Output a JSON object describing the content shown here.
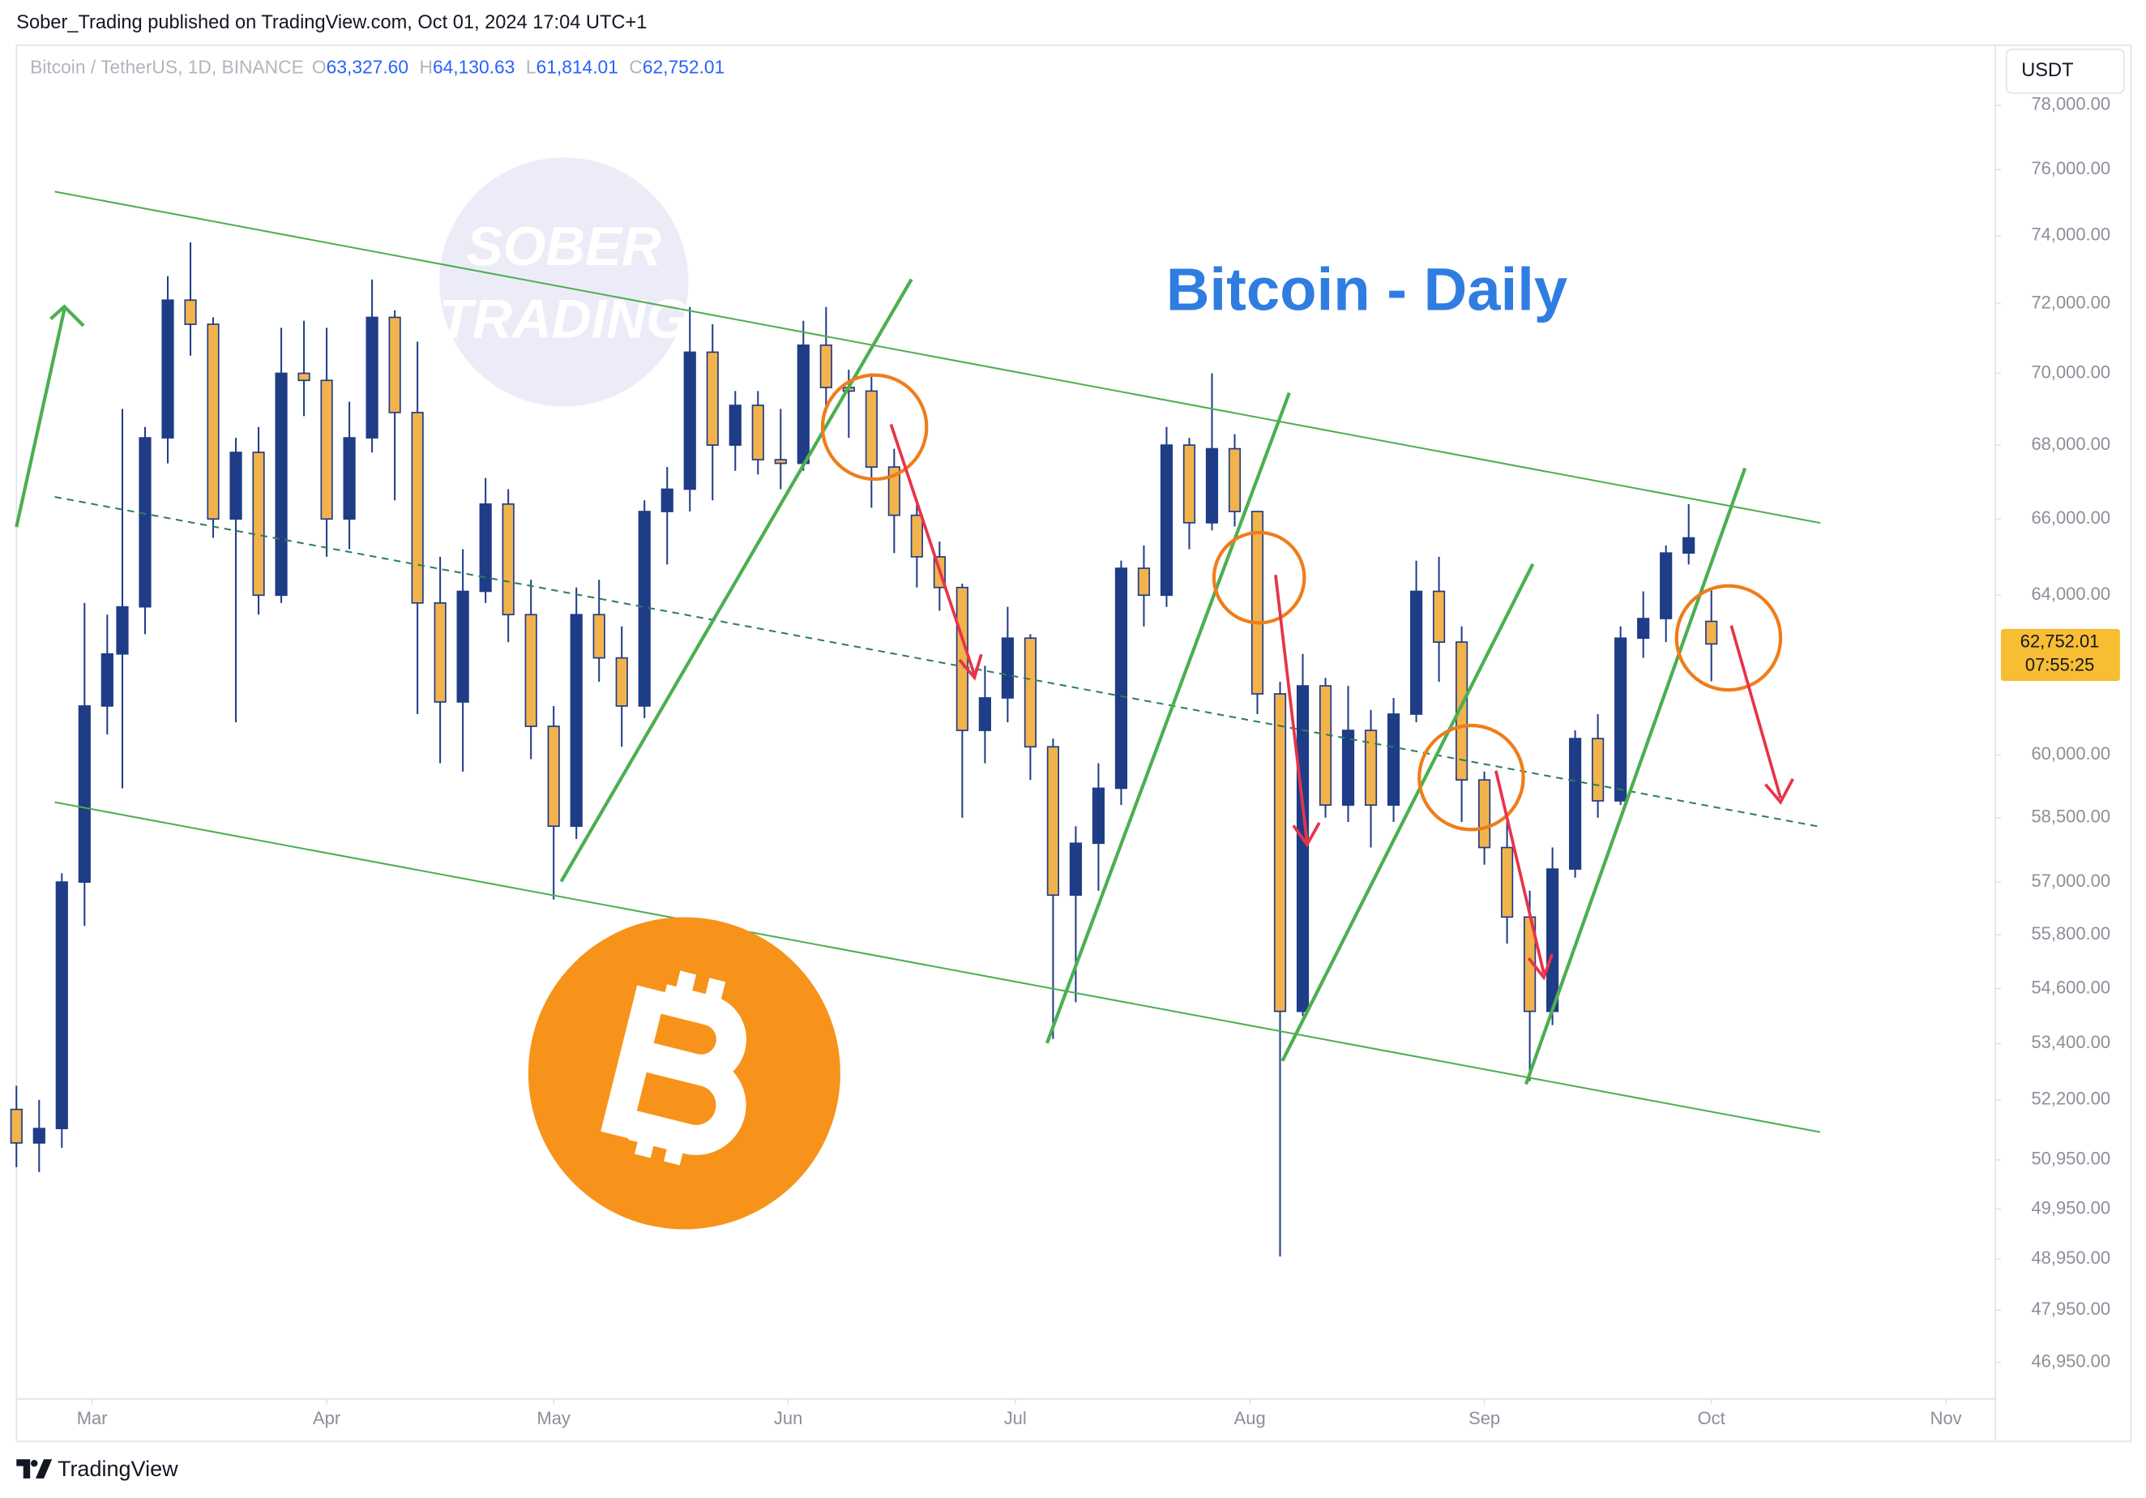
{
  "chart_data": {
    "type": "candlestick",
    "publisher": "Sober_Trading published on TradingView.com, Oct 01, 2024 17:04 UTC+1",
    "symbol": "Bitcoin / TetherUS, 1D, BINANCE",
    "ohlc_legend": [
      [
        "O",
        "63,327.60"
      ],
      [
        "H",
        "64,130.63"
      ],
      [
        "L",
        "61,814.01"
      ],
      [
        "C",
        "62,752.01"
      ]
    ],
    "title": "Bitcoin - Daily",
    "currency": "USDT",
    "watermark": [
      "SOBER",
      "TRADING"
    ],
    "footer": "TradingView",
    "log_scale": true,
    "up_color": "#1f3d87",
    "down_color": "#f2b34c",
    "last_price_label": "62,752.01",
    "countdown": "07:55:25",
    "last_price_color": "#f7bd33",
    "xlim": [
      "2024-02-20",
      "2024-11-07"
    ],
    "xticks": [
      {
        "value": "2024-03-01",
        "label": "Mar"
      },
      {
        "value": "2024-04-01",
        "label": "Apr"
      },
      {
        "value": "2024-05-01",
        "label": "May"
      },
      {
        "value": "2024-06-01",
        "label": "Jun"
      },
      {
        "value": "2024-07-01",
        "label": "Jul"
      },
      {
        "value": "2024-08-01",
        "label": "Aug"
      },
      {
        "value": "2024-09-01",
        "label": "Sep"
      },
      {
        "value": "2024-10-01",
        "label": "Oct"
      },
      {
        "value": "2024-11-01",
        "label": "Nov"
      }
    ],
    "ylim": [
      46260,
      79830
    ],
    "yticks": [
      {
        "value": 78000,
        "label": "78,000.00"
      },
      {
        "value": 76000,
        "label": "76,000.00"
      },
      {
        "value": 74000,
        "label": "74,000.00"
      },
      {
        "value": 72000,
        "label": "72,000.00"
      },
      {
        "value": 70000,
        "label": "70,000.00"
      },
      {
        "value": 68000,
        "label": "68,000.00"
      },
      {
        "value": 66000,
        "label": "66,000.00"
      },
      {
        "value": 64000,
        "label": "64,000.00"
      },
      {
        "value": 60000,
        "label": "60,000.00"
      },
      {
        "value": 58500,
        "label": "58,500.00"
      },
      {
        "value": 57000,
        "label": "57,000.00"
      },
      {
        "value": 55800,
        "label": "55,800.00"
      },
      {
        "value": 54600,
        "label": "54,600.00"
      },
      {
        "value": 53400,
        "label": "53,400.00"
      },
      {
        "value": 52200,
        "label": "52,200.00"
      },
      {
        "value": 50950,
        "label": "50,950.00"
      },
      {
        "value": 49950,
        "label": "49,950.00"
      },
      {
        "value": 48950,
        "label": "48,950.00"
      },
      {
        "value": 47950,
        "label": "47,950.00"
      },
      {
        "value": 46950,
        "label": "46,950.00"
      }
    ],
    "x": [
      "2024-02-20",
      "2024-02-23",
      "2024-02-26",
      "2024-02-29",
      "2024-03-03",
      "2024-03-05",
      "2024-03-08",
      "2024-03-11",
      "2024-03-14",
      "2024-03-17",
      "2024-03-20",
      "2024-03-23",
      "2024-03-26",
      "2024-03-29",
      "2024-04-01",
      "2024-04-04",
      "2024-04-07",
      "2024-04-10",
      "2024-04-13",
      "2024-04-16",
      "2024-04-19",
      "2024-04-22",
      "2024-04-25",
      "2024-04-28",
      "2024-05-01",
      "2024-05-04",
      "2024-05-07",
      "2024-05-10",
      "2024-05-13",
      "2024-05-16",
      "2024-05-19",
      "2024-05-22",
      "2024-05-25",
      "2024-05-28",
      "2024-05-31",
      "2024-06-03",
      "2024-06-06",
      "2024-06-09",
      "2024-06-12",
      "2024-06-15",
      "2024-06-18",
      "2024-06-21",
      "2024-06-24",
      "2024-06-27",
      "2024-06-30",
      "2024-07-03",
      "2024-07-06",
      "2024-07-09",
      "2024-07-12",
      "2024-07-15",
      "2024-07-18",
      "2024-07-21",
      "2024-07-24",
      "2024-07-27",
      "2024-07-30",
      "2024-08-02",
      "2024-08-05",
      "2024-08-08",
      "2024-08-11",
      "2024-08-14",
      "2024-08-17",
      "2024-08-20",
      "2024-08-23",
      "2024-08-26",
      "2024-08-29",
      "2024-09-01",
      "2024-09-04",
      "2024-09-07",
      "2024-09-10",
      "2024-09-13",
      "2024-09-16",
      "2024-09-19",
      "2024-09-22",
      "2024-09-25",
      "2024-09-28",
      "2024-10-01"
    ],
    "open": [
      52000,
      51300,
      51600,
      57000,
      61200,
      62500,
      63700,
      68200,
      72100,
      71400,
      66000,
      67800,
      64000,
      70000,
      69800,
      66000,
      68200,
      71600,
      68900,
      63800,
      61300,
      64100,
      66400,
      63500,
      60700,
      58300,
      63500,
      62400,
      61200,
      66200,
      66800,
      70600,
      68000,
      69100,
      67600,
      67500,
      70800,
      69600,
      69500,
      67400,
      66100,
      65000,
      64200,
      60600,
      61400,
      62900,
      60200,
      56700,
      57900,
      59200,
      64700,
      64000,
      68000,
      65900,
      67900,
      66200,
      61500,
      54100,
      61700,
      58800,
      60600,
      58800,
      61000,
      64100,
      62800,
      59400,
      57800,
      56200,
      54100,
      57300,
      60400,
      58900,
      62900,
      63400,
      65100,
      63327.6
    ],
    "high": [
      52500,
      52200,
      57200,
      63800,
      63500,
      69000,
      68500,
      72800,
      73800,
      71600,
      68200,
      68500,
      71300,
      71500,
      71300,
      69200,
      72700,
      71800,
      70900,
      65000,
      65200,
      67100,
      66800,
      64400,
      61200,
      64200,
      64400,
      63200,
      66500,
      67400,
      71900,
      71400,
      69500,
      69500,
      69000,
      71500,
      71900,
      70100,
      70000,
      67900,
      66500,
      65400,
      64300,
      62200,
      63700,
      63000,
      60400,
      58300,
      59800,
      64900,
      65300,
      68500,
      68200,
      70000,
      68300,
      66200,
      61800,
      62500,
      61900,
      61700,
      61100,
      61400,
      64900,
      65000,
      63200,
      59600,
      58500,
      56800,
      57800,
      60600,
      61000,
      63200,
      64100,
      65300,
      66400,
      64130.63
    ],
    "low": [
      50800,
      50700,
      51200,
      56000,
      60500,
      59200,
      63000,
      67500,
      70500,
      65500,
      60800,
      63500,
      63800,
      68800,
      65000,
      65200,
      67800,
      66500,
      61000,
      59800,
      59600,
      63800,
      62800,
      59900,
      56600,
      58000,
      61800,
      60200,
      60900,
      64800,
      66200,
      66500,
      67300,
      67200,
      66800,
      67300,
      68900,
      68200,
      66300,
      65100,
      64200,
      63600,
      58500,
      59800,
      60800,
      59400,
      53500,
      54300,
      56800,
      58800,
      63200,
      63700,
      65200,
      65700,
      65800,
      61000,
      49000,
      54000,
      58500,
      58400,
      57800,
      58400,
      60800,
      61800,
      58400,
      57400,
      55600,
      52600,
      53800,
      57100,
      58500,
      58800,
      62400,
      62800,
      64800,
      61814.01
    ],
    "close": [
      51300,
      51600,
      57000,
      61200,
      62500,
      63700,
      68200,
      72100,
      71400,
      66000,
      67800,
      64000,
      70000,
      69800,
      66000,
      68200,
      71600,
      68900,
      63800,
      61300,
      64100,
      66400,
      63500,
      60700,
      58300,
      63500,
      62400,
      61200,
      66200,
      66800,
      70600,
      68000,
      69100,
      67600,
      67500,
      70800,
      69600,
      69500,
      67400,
      66100,
      65000,
      64200,
      60600,
      61400,
      62900,
      60200,
      56700,
      57900,
      59200,
      64700,
      64000,
      68000,
      65900,
      67900,
      66200,
      61500,
      54100,
      61700,
      58800,
      60600,
      58800,
      61000,
      64100,
      62800,
      59400,
      57800,
      56200,
      54100,
      57300,
      60400,
      58900,
      62900,
      63400,
      65100,
      65500,
      62752.01
    ]
  }
}
